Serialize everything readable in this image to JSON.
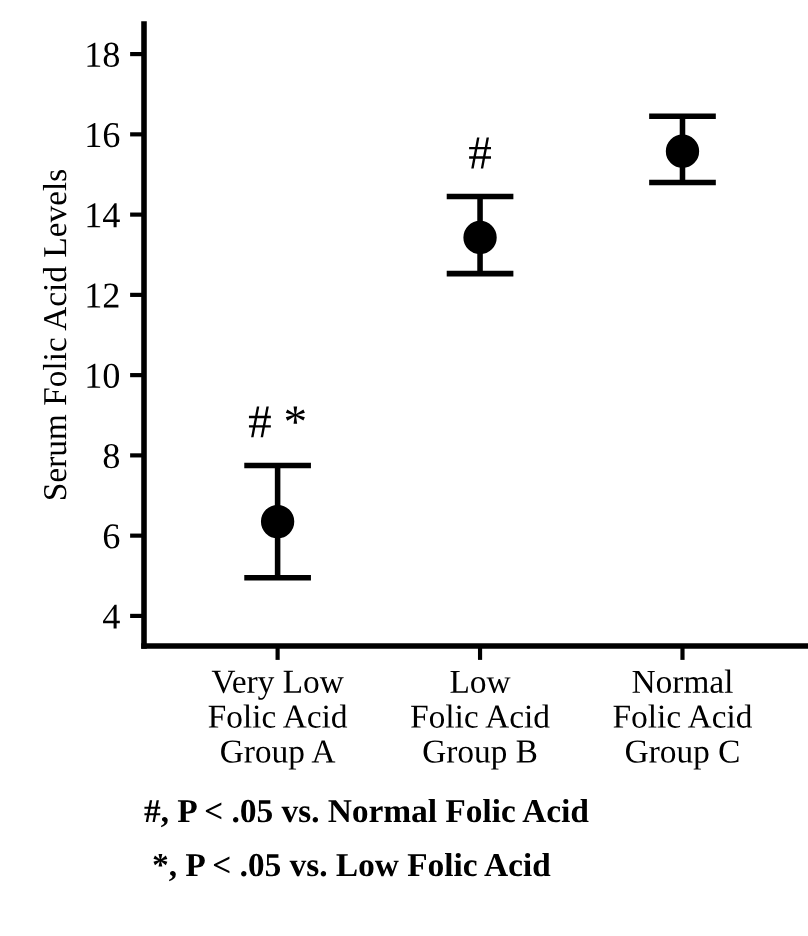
{
  "chart_data": {
    "type": "scatter",
    "ylabel": "Serum Folic Acid Levels",
    "categories": [
      "Very Low\nFolic Acid\nGroup A",
      "Low\nFolic Acid\nGroup B",
      "Normal\nFolic Acid\nGroup C"
    ],
    "series": [
      {
        "color": "#000000",
        "values": [
          6.35,
          13.43,
          15.58
        ],
        "errors": [
          [
            4.95,
            7.75
          ],
          [
            12.53,
            14.45
          ],
          [
            14.8,
            16.45
          ]
        ]
      }
    ],
    "marker": "circle",
    "ylim": [
      3.25,
      18.75
    ],
    "yticks": [
      4,
      6,
      8,
      10,
      12,
      14,
      16,
      18
    ],
    "grid": false,
    "legend": false,
    "annotations": [
      "# *",
      "#",
      "#, P < .05 vs. Normal Folic Acid",
      "*, P < .05 vs. Low Folic Acid"
    ]
  }
}
